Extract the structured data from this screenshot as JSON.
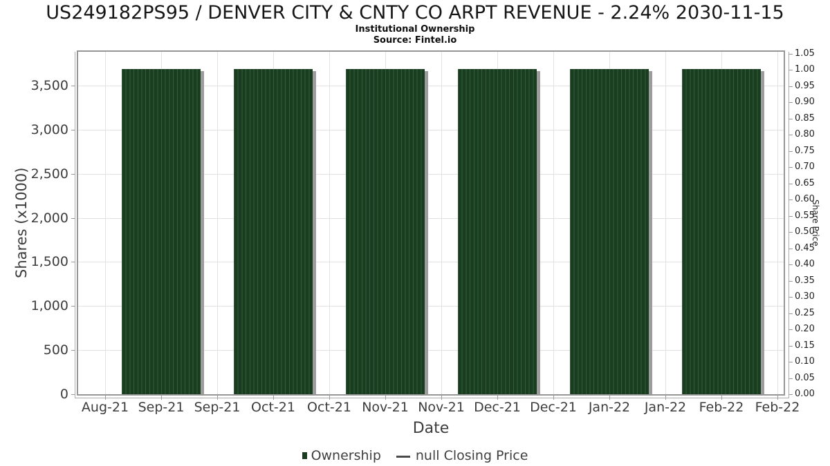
{
  "chart_data": {
    "type": "bar",
    "title": "US249182PS95 / DENVER CITY & CNTY CO ARPT REVENUE - 2.24% 2030-11-15",
    "subtitle": "Institutional Ownership",
    "source": "Source: Fintel.io",
    "xlabel": "Date",
    "x_tick_labels": [
      "Aug-21",
      "Sep-21",
      "Sep-21",
      "Oct-21",
      "Oct-21",
      "Nov-21",
      "Nov-21",
      "Dec-21",
      "Dec-21",
      "Jan-22",
      "Jan-22",
      "Feb-22",
      "Feb-22"
    ],
    "left_axis": {
      "label": "Shares (x1000)",
      "ylim": [
        0,
        3884
      ],
      "ticks": [
        {
          "value": 0,
          "label": "0"
        },
        {
          "value": 500,
          "label": "500"
        },
        {
          "value": 1000,
          "label": "1,000"
        },
        {
          "value": 1500,
          "label": "1,500"
        },
        {
          "value": 2000,
          "label": "2,000"
        },
        {
          "value": 2500,
          "label": "2,500"
        },
        {
          "value": 3000,
          "label": "3,000"
        },
        {
          "value": 3500,
          "label": "3,500"
        }
      ]
    },
    "right_axis": {
      "label": "Share Price",
      "ylim": [
        0,
        1.0564
      ],
      "ticks": [
        {
          "value": 0.0,
          "label": "0.00"
        },
        {
          "value": 0.05,
          "label": "0.05"
        },
        {
          "value": 0.1,
          "label": "0.10"
        },
        {
          "value": 0.15,
          "label": "0.15"
        },
        {
          "value": 0.2,
          "label": "0.20"
        },
        {
          "value": 0.25,
          "label": "0.25"
        },
        {
          "value": 0.3,
          "label": "0.30"
        },
        {
          "value": 0.35,
          "label": "0.35"
        },
        {
          "value": 0.4,
          "label": "0.40"
        },
        {
          "value": 0.45,
          "label": "0.45"
        },
        {
          "value": 0.5,
          "label": "0.50"
        },
        {
          "value": 0.55,
          "label": "0.55"
        },
        {
          "value": 0.6,
          "label": "0.60"
        },
        {
          "value": 0.65,
          "label": "0.65"
        },
        {
          "value": 0.7,
          "label": "0.70"
        },
        {
          "value": 0.75,
          "label": "0.75"
        },
        {
          "value": 0.8,
          "label": "0.80"
        },
        {
          "value": 0.85,
          "label": "0.85"
        },
        {
          "value": 0.9,
          "label": "0.90"
        },
        {
          "value": 0.95,
          "label": "0.95"
        },
        {
          "value": 1.0,
          "label": "1.00"
        },
        {
          "value": 1.05,
          "label": "1.05"
        }
      ]
    },
    "grid": true,
    "legend_position": "bottom",
    "series": [
      {
        "name": "Ownership",
        "type": "bar",
        "color": "#183e1f",
        "data": [
          {
            "month": "Sep-21",
            "tick_index": 1,
            "value": 3688
          },
          {
            "month": "Oct-21",
            "tick_index": 3,
            "value": 3688
          },
          {
            "month": "Nov-21",
            "tick_index": 5,
            "value": 3688
          },
          {
            "month": "Dec-21",
            "tick_index": 7,
            "value": 3688
          },
          {
            "month": "Jan-22",
            "tick_index": 9,
            "value": 3688
          },
          {
            "month": "Feb-22",
            "tick_index": 11,
            "value": 3688
          }
        ]
      },
      {
        "name": "null Closing Price",
        "type": "line",
        "color": "#4a4a4a",
        "data": []
      }
    ],
    "legend": [
      {
        "label": "Ownership",
        "marker": "square",
        "color": "#183e1f"
      },
      {
        "label": "null Closing Price",
        "marker": "dash",
        "color": "#4a4a4a"
      }
    ]
  },
  "colors": {
    "bar": "#183e1f",
    "bar_shadow": "#9c9c9c",
    "grid": "#e2e2e2",
    "frame": "#969696",
    "tick_text": "#3c3c3c"
  }
}
